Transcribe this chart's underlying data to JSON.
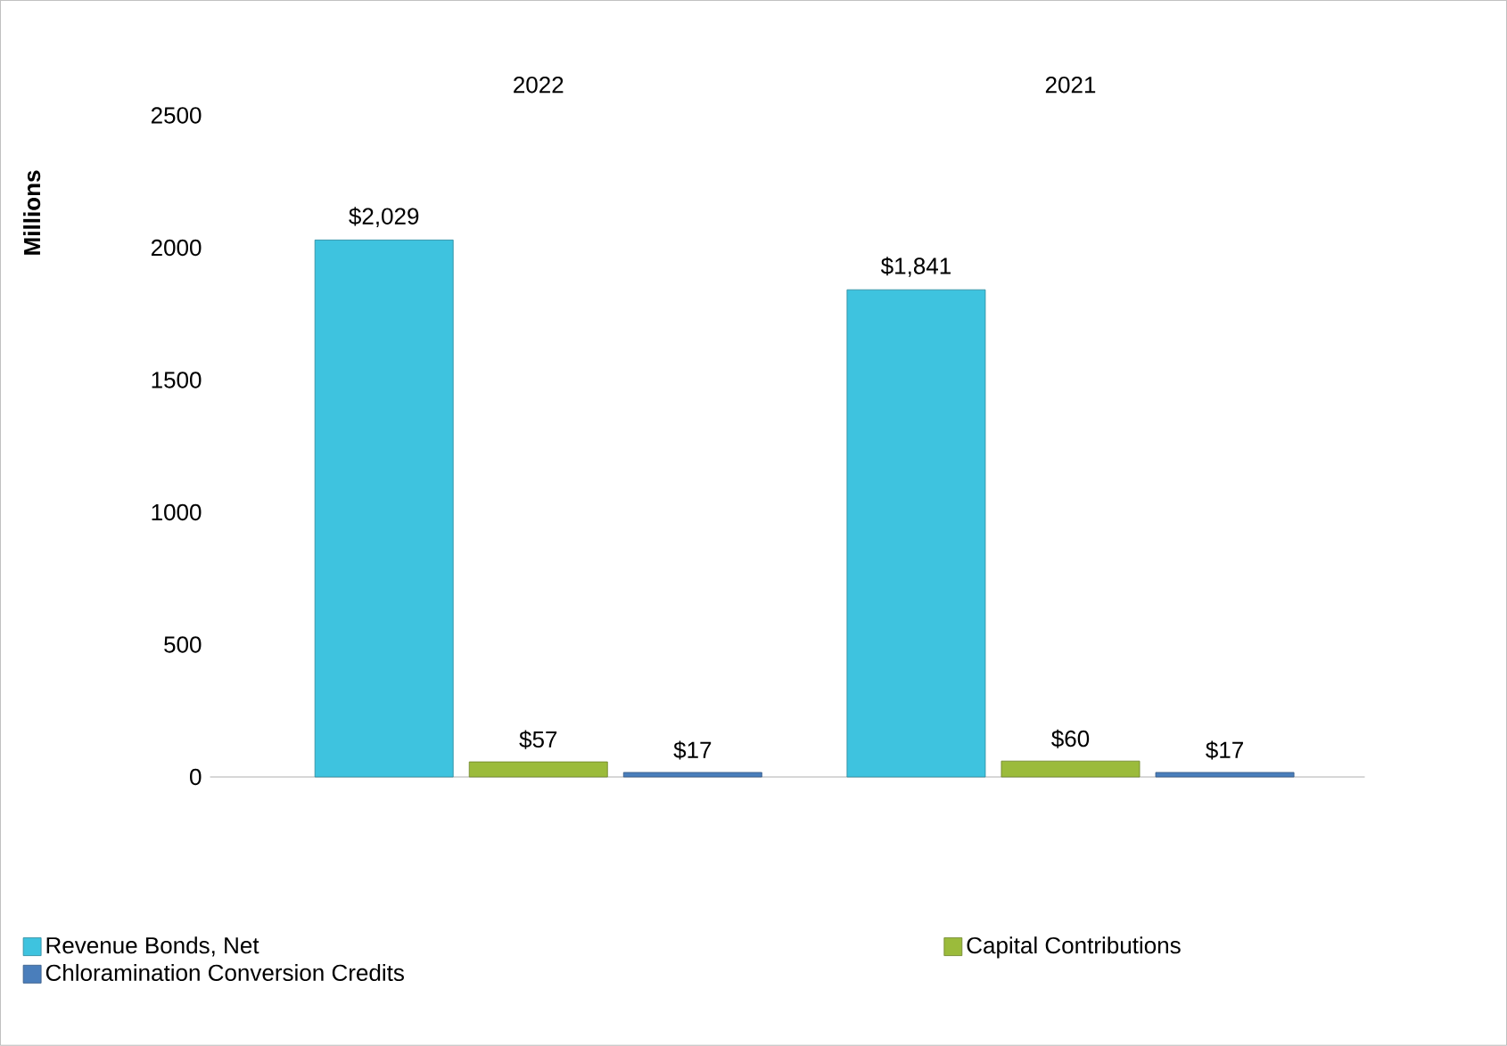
{
  "chart_data": {
    "type": "bar",
    "categories": [
      "2022",
      "2021"
    ],
    "ylabel": "Millions",
    "ylim": [
      0,
      2500
    ],
    "yticks": [
      0,
      500,
      1000,
      1500,
      2000,
      2500
    ],
    "legend": "bottom",
    "series": [
      {
        "name": "Revenue Bonds, Net",
        "color": "#3ec3df",
        "values": [
          2029,
          1841
        ],
        "value_labels": [
          "$2,029",
          "$1,841"
        ]
      },
      {
        "name": "Capital Contributions",
        "color": "#9bbb3b",
        "values": [
          57,
          60
        ],
        "value_labels": [
          "$57",
          "$60"
        ]
      },
      {
        "name": "Chloramination Conversion Credits",
        "color": "#4a7ebb",
        "values": [
          17,
          17
        ],
        "value_labels": [
          "$17",
          "$17"
        ]
      }
    ]
  }
}
